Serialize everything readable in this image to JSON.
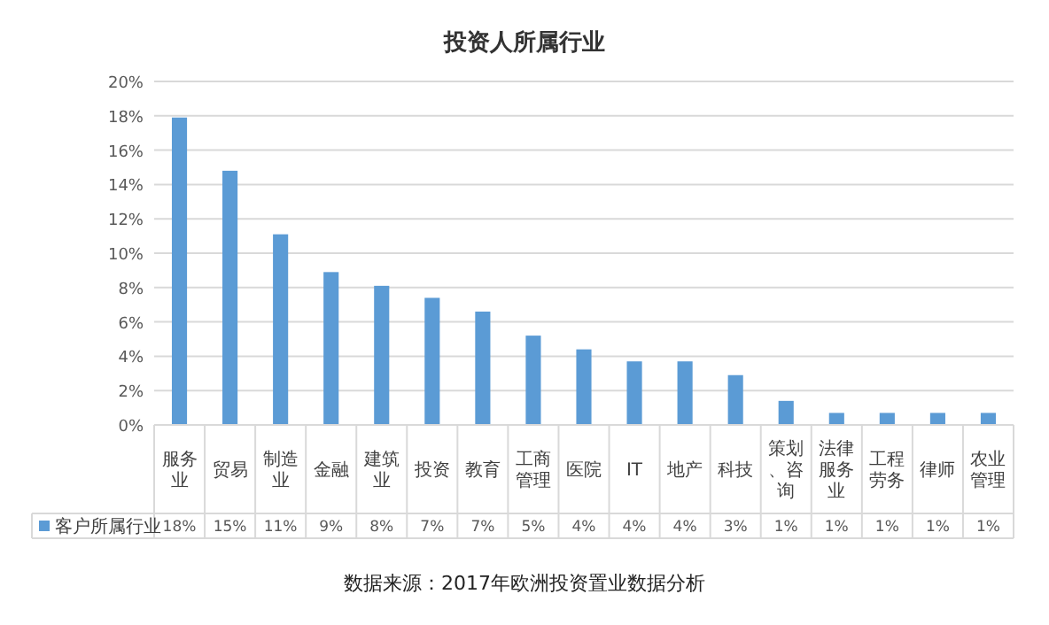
{
  "chart_data": {
    "type": "bar",
    "title": "投资人所属行业",
    "categories": [
      "服务业",
      "贸易",
      "制造业",
      "金融",
      "建筑业",
      "投资",
      "教育",
      "工商管理",
      "医院",
      "IT",
      "地产",
      "科技",
      "策划、咨询",
      "法律服务业",
      "工程劳务",
      "律师",
      "农业管理"
    ],
    "series": [
      {
        "name": "客户所属行业",
        "color": "#5b9bd5",
        "values": [
          17.9,
          14.8,
          11.1,
          8.9,
          8.1,
          7.4,
          6.6,
          5.2,
          4.4,
          3.7,
          3.7,
          2.9,
          1.4,
          0.7,
          0.7,
          0.7,
          0.7
        ],
        "value_labels": [
          "18%",
          "15%",
          "11%",
          "9%",
          "8%",
          "7%",
          "7%",
          "5%",
          "4%",
          "4%",
          "4%",
          "3%",
          "1%",
          "1%",
          "1%",
          "1%",
          "1%"
        ]
      }
    ],
    "ylim": [
      0,
      20
    ],
    "yticks": [
      {
        "value": 0,
        "label": "0%"
      },
      {
        "value": 2,
        "label": "2%"
      },
      {
        "value": 4,
        "label": "4%"
      },
      {
        "value": 6,
        "label": "6%"
      },
      {
        "value": 8,
        "label": "8%"
      },
      {
        "value": 10,
        "label": "10%"
      },
      {
        "value": 12,
        "label": "12%"
      },
      {
        "value": 14,
        "label": "14%"
      },
      {
        "value": 16,
        "label": "16%"
      },
      {
        "value": 18,
        "label": "18%"
      },
      {
        "value": 20,
        "label": "20%"
      }
    ],
    "grid": "y",
    "legend": "bottom",
    "annotations": [
      "数据来源：2017年欧洲投资置业数据分析"
    ]
  }
}
